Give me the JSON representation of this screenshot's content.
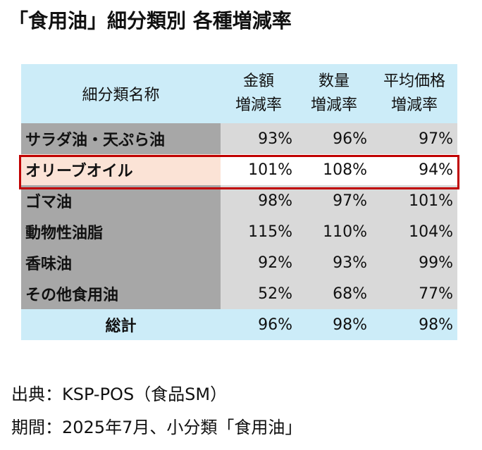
{
  "title": "「食用油」細分類別 各種増減率",
  "table": {
    "header": {
      "name": "細分類名称",
      "col1_line1": "金額",
      "col1_line2": "増減率",
      "col2_line1": "数量",
      "col2_line2": "増減率",
      "col3_line1": "平均価格",
      "col3_line2": "増減率"
    },
    "rows": [
      {
        "name": "サラダ油・天ぷら油",
        "amount": "93%",
        "quantity": "96%",
        "avg_price": "97%"
      },
      {
        "name": "オリーブオイル",
        "amount": "101%",
        "quantity": "108%",
        "avg_price": "94%"
      },
      {
        "name": "ゴマ油",
        "amount": "98%",
        "quantity": "97%",
        "avg_price": "101%"
      },
      {
        "name": "動物性油脂",
        "amount": "115%",
        "quantity": "110%",
        "avg_price": "104%"
      },
      {
        "name": "香味油",
        "amount": "92%",
        "quantity": "93%",
        "avg_price": "99%"
      },
      {
        "name": "その他食用油",
        "amount": "52%",
        "quantity": "68%",
        "avg_price": "77%"
      }
    ],
    "total": {
      "name": "総計",
      "amount": "96%",
      "quantity": "98%",
      "avg_price": "98%"
    }
  },
  "source": "出典：KSP-POS（食品SM）",
  "period": "期間：2025年7月、小分類「食用油」",
  "colors": {
    "header_bg": "#ccecf8",
    "name_col_bg": "#a7a7a7",
    "value_bg": "#d9d9d9",
    "highlight_name_bg": "#fbe3d6",
    "highlight_border": "#c00000"
  }
}
